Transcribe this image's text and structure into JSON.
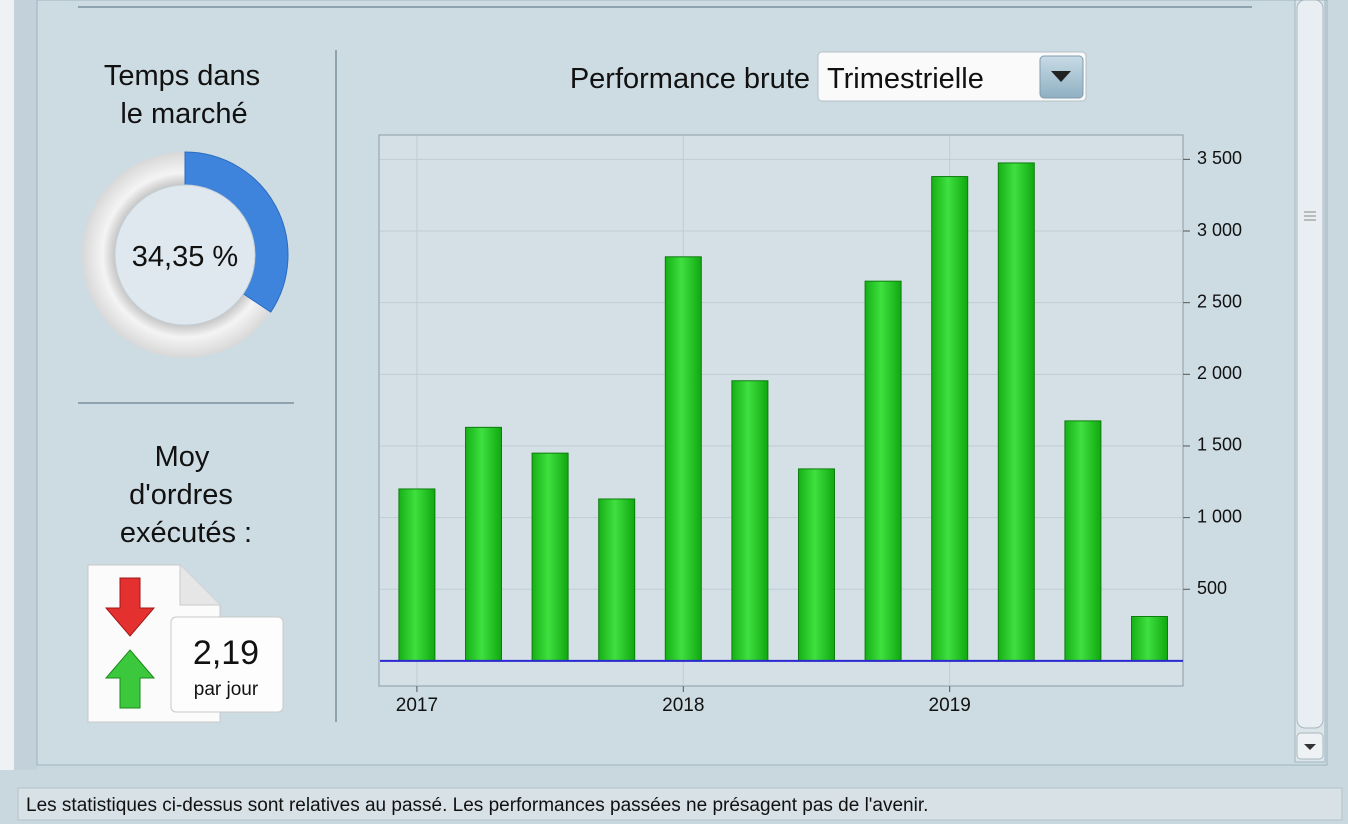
{
  "time_in_market": {
    "title_lines": [
      "Temps dans",
      "le marché"
    ],
    "value": 34.35,
    "value_label": "34,35 %"
  },
  "orders": {
    "title_lines": [
      "Moy",
      "d'ordres",
      "exécutés :"
    ],
    "value": "2,19",
    "unit": "par jour"
  },
  "chart_data": {
    "type": "bar",
    "title": "Performance brute",
    "period_selector": "Trimestrielle",
    "categories": [
      "2017",
      null,
      null,
      null,
      "2018",
      null,
      null,
      null,
      "2019",
      null,
      null,
      null
    ],
    "values": [
      1200,
      1630,
      1450,
      1130,
      2820,
      1955,
      1340,
      2650,
      3380,
      3475,
      1675,
      310
    ],
    "color": "#22cc22",
    "ylim": [
      -175,
      3670
    ],
    "yticks": [
      500,
      {
        "value": 1000,
        "label": "1 000"
      },
      {
        "value": 1500,
        "label": "1 500"
      },
      {
        "value": 2000,
        "label": "2 000"
      },
      {
        "value": 2500,
        "label": "2 500"
      },
      {
        "value": 3000,
        "label": "3 000"
      },
      {
        "value": 3500,
        "label": "3 500"
      }
    ],
    "grid": true
  },
  "footer": "Les statistiques ci-dessus sont relatives au passé. Les performances passées ne présagent pas de l'avenir."
}
